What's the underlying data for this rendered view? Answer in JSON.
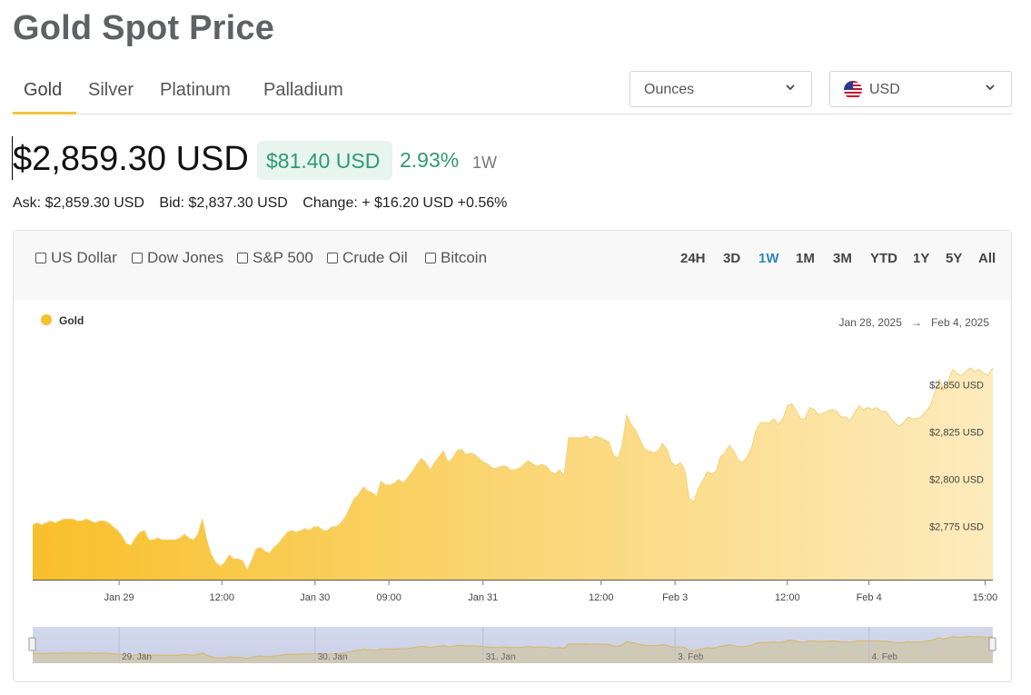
{
  "page": {
    "title": "Gold Spot Price"
  },
  "tabs": [
    {
      "label": "Gold",
      "active": true
    },
    {
      "label": "Silver"
    },
    {
      "label": "Platinum"
    },
    {
      "label": "Palladium"
    }
  ],
  "unit_select": {
    "value": "Ounces",
    "icon": "chevron-down-icon"
  },
  "currency_select": {
    "value": "USD",
    "icon": "us-flag-icon"
  },
  "price": {
    "current": "$2,859.30 USD",
    "change_amount": "$81.40 USD",
    "change_percent": "2.93%",
    "period": "1W"
  },
  "quote": {
    "ask": "Ask: $2,859.30 USD",
    "bid": "Bid: $2,837.30 USD",
    "change": "Change: + $16.20 USD +0.56%"
  },
  "compare": [
    "US Dollar",
    "Dow Jones",
    "S&P 500",
    "Crude Oil",
    "Bitcoin"
  ],
  "ranges": [
    "24H",
    "3D",
    "1W",
    "1M",
    "3M",
    "YTD",
    "1Y",
    "5Y",
    "All"
  ],
  "active_range": "1W",
  "colors": {
    "gold": "#f6c12e",
    "gold_fill_start": "#f8c02a",
    "gold_fill_end": "#fde9b6",
    "up_green": "#2f9a72",
    "active_range": "#2e86c1"
  },
  "chart_data": {
    "type": "area",
    "legend": [
      "Gold"
    ],
    "date_range": {
      "from": "Jan 28, 2025",
      "to": "Feb 4, 2025",
      "arrow": "→"
    },
    "x_ticks": [
      "Jan 29",
      "12:00",
      "Jan 30",
      "09:00",
      "Jan 31",
      "12:00",
      "Feb 3",
      "12:00",
      "Feb 4",
      "15:00"
    ],
    "y_ticks": [
      "$2,775 USD",
      "$2,800 USD",
      "$2,825 USD",
      "$2,850 USD"
    ],
    "y_tick_values": [
      2775,
      2800,
      2825,
      2850
    ],
    "ylim": [
      2747,
      2870
    ],
    "navigator_labels": [
      "29. Jan",
      "30. Jan",
      "31. Jan",
      "3. Feb",
      "4. Feb"
    ],
    "series": [
      {
        "name": "Gold",
        "values": [
          2776,
          2777,
          2776,
          2777,
          2778,
          2777,
          2778,
          2779,
          2779,
          2779,
          2778,
          2778,
          2779,
          2778,
          2777,
          2778,
          2778,
          2777,
          2775,
          2773,
          2770,
          2766,
          2765,
          2769,
          2772,
          2773,
          2768,
          2768,
          2769,
          2768,
          2768,
          2768,
          2768,
          2769,
          2771,
          2769,
          2768,
          2771,
          2779,
          2768,
          2760,
          2756,
          2754,
          2756,
          2760,
          2758,
          2758,
          2757,
          2752,
          2757,
          2763,
          2764,
          2762,
          2761,
          2764,
          2766,
          2769,
          2772,
          2773,
          2772,
          2773,
          2774,
          2773,
          2775,
          2775,
          2773,
          2773,
          2775,
          2775,
          2777,
          2780,
          2785,
          2790,
          2792,
          2796,
          2794,
          2793,
          2791,
          2799,
          2797,
          2797,
          2798,
          2800,
          2798,
          2801,
          2804,
          2808,
          2811,
          2809,
          2805,
          2809,
          2812,
          2815,
          2809,
          2811,
          2815,
          2816,
          2813,
          2814,
          2813,
          2811,
          2809,
          2808,
          2806,
          2806,
          2807,
          2807,
          2805,
          2805,
          2806,
          2808,
          2810,
          2808,
          2807,
          2808,
          2807,
          2804,
          2803,
          2805,
          2802,
          2822,
          2822,
          2822,
          2822,
          2823,
          2821,
          2823,
          2822,
          2821,
          2820,
          2813,
          2811,
          2818,
          2834,
          2829,
          2826,
          2821,
          2816,
          2815,
          2814,
          2815,
          2819,
          2816,
          2809,
          2807,
          2809,
          2805,
          2790,
          2788,
          2795,
          2799,
          2804,
          2803,
          2804,
          2812,
          2814,
          2818,
          2815,
          2810,
          2809,
          2812,
          2817,
          2826,
          2830,
          2830,
          2830,
          2832,
          2829,
          2832,
          2839,
          2840,
          2836,
          2832,
          2832,
          2838,
          2837,
          2834,
          2835,
          2836,
          2837,
          2836,
          2833,
          2833,
          2831,
          2835,
          2839,
          2837,
          2838,
          2837,
          2838,
          2836,
          2836,
          2833,
          2830,
          2828,
          2830,
          2833,
          2832,
          2832,
          2833,
          2836,
          2839,
          2846,
          2853,
          2847,
          2852,
          2858,
          2856,
          2855,
          2857,
          2859,
          2857,
          2858,
          2856,
          2855,
          2859
        ]
      }
    ]
  }
}
